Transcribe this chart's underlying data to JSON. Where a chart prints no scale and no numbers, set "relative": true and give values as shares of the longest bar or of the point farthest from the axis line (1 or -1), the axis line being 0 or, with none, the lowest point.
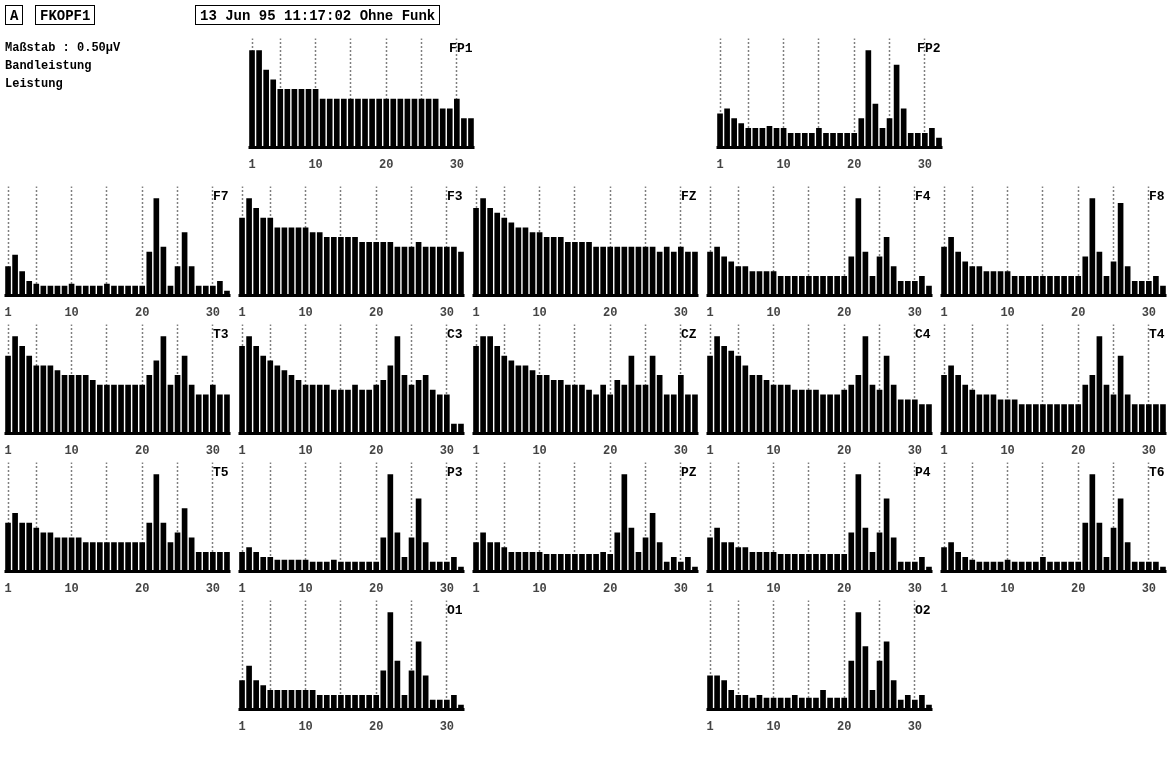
{
  "chart_data": [
    {
      "type": "other",
      "annotations": [
        "A",
        "FKOPF1",
        "13 Jun 95 11:17:02 Ohne Funk",
        "Maßstab : 0.50µV",
        "Bandleistung",
        "Leistung"
      ]
    },
    {
      "type": "bar",
      "title": "FP1",
      "relative": true,
      "grid": "x",
      "xlim": [
        0.5,
        32.5
      ],
      "xticks": [
        1,
        {
          "value": 5,
          "label": null
        },
        10,
        {
          "value": 15,
          "label": null
        },
        20,
        {
          "value": 25,
          "label": null
        },
        30
      ],
      "color": "#000000",
      "x": [
        1,
        2,
        3,
        4,
        5,
        6,
        7,
        8,
        9,
        10,
        11,
        12,
        13,
        14,
        15,
        16,
        17,
        18,
        19,
        20,
        21,
        22,
        23,
        24,
        25,
        26,
        27,
        28,
        29,
        30,
        31,
        32
      ],
      "values": [
        1,
        1,
        0.8,
        0.7,
        0.6,
        0.6,
        0.6,
        0.6,
        0.6,
        0.6,
        0.5,
        0.5,
        0.5,
        0.5,
        0.5,
        0.5,
        0.5,
        0.5,
        0.5,
        0.5,
        0.5,
        0.5,
        0.5,
        0.5,
        0.5,
        0.5,
        0.5,
        0.4,
        0.4,
        0.5,
        0.3,
        0.3
      ]
    },
    {
      "type": "bar",
      "title": "FP2",
      "relative": true,
      "grid": "x",
      "xlim": [
        0.5,
        32.5
      ],
      "xticks": [
        1,
        {
          "value": 5,
          "label": null
        },
        10,
        {
          "value": 15,
          "label": null
        },
        20,
        {
          "value": 25,
          "label": null
        },
        30
      ],
      "color": "#000000",
      "x": [
        1,
        2,
        3,
        4,
        5,
        6,
        7,
        8,
        9,
        10,
        11,
        12,
        13,
        14,
        15,
        16,
        17,
        18,
        19,
        20,
        21,
        22,
        23,
        24,
        25,
        26,
        27,
        28,
        29,
        30,
        31,
        32
      ],
      "values": [
        0.35,
        0.4,
        0.3,
        0.25,
        0.2,
        0.2,
        0.2,
        0.22,
        0.2,
        0.2,
        0.15,
        0.15,
        0.15,
        0.15,
        0.2,
        0.15,
        0.15,
        0.15,
        0.15,
        0.15,
        0.3,
        1,
        0.45,
        0.2,
        0.3,
        0.85,
        0.4,
        0.15,
        0.15,
        0.15,
        0.2,
        0.1
      ]
    },
    {
      "type": "bar",
      "title": "F7",
      "relative": true,
      "grid": "x",
      "xlim": [
        0.5,
        32.5
      ],
      "xticks": [
        1,
        {
          "value": 5,
          "label": null
        },
        10,
        {
          "value": 15,
          "label": null
        },
        20,
        {
          "value": 25,
          "label": null
        },
        30
      ],
      "color": "#000000",
      "x": [
        1,
        2,
        3,
        4,
        5,
        6,
        7,
        8,
        9,
        10,
        11,
        12,
        13,
        14,
        15,
        16,
        17,
        18,
        19,
        20,
        21,
        22,
        23,
        24,
        25,
        26,
        27,
        28,
        29,
        30,
        31,
        32
      ],
      "values": [
        0.3,
        0.42,
        0.25,
        0.15,
        0.12,
        0.1,
        0.1,
        0.1,
        0.1,
        0.12,
        0.1,
        0.1,
        0.1,
        0.1,
        0.12,
        0.1,
        0.1,
        0.1,
        0.1,
        0.1,
        0.45,
        1,
        0.5,
        0.1,
        0.3,
        0.65,
        0.3,
        0.1,
        0.1,
        0.1,
        0.15,
        0.05
      ]
    },
    {
      "type": "bar",
      "title": "F3",
      "relative": true,
      "grid": "x",
      "xlim": [
        0.5,
        32.5
      ],
      "xticks": [
        1,
        {
          "value": 5,
          "label": null
        },
        10,
        {
          "value": 15,
          "label": null
        },
        20,
        {
          "value": 25,
          "label": null
        },
        30
      ],
      "color": "#000000",
      "x": [
        1,
        2,
        3,
        4,
        5,
        6,
        7,
        8,
        9,
        10,
        11,
        12,
        13,
        14,
        15,
        16,
        17,
        18,
        19,
        20,
        21,
        22,
        23,
        24,
        25,
        26,
        27,
        28,
        29,
        30,
        31,
        32
      ],
      "values": [
        0.8,
        1,
        0.9,
        0.8,
        0.8,
        0.7,
        0.7,
        0.7,
        0.7,
        0.7,
        0.65,
        0.65,
        0.6,
        0.6,
        0.6,
        0.6,
        0.6,
        0.55,
        0.55,
        0.55,
        0.55,
        0.55,
        0.5,
        0.5,
        0.5,
        0.55,
        0.5,
        0.5,
        0.5,
        0.5,
        0.5,
        0.45
      ]
    },
    {
      "type": "bar",
      "title": "FZ",
      "relative": true,
      "grid": "x",
      "xlim": [
        0.5,
        32.5
      ],
      "xticks": [
        1,
        {
          "value": 5,
          "label": null
        },
        10,
        {
          "value": 15,
          "label": null
        },
        20,
        {
          "value": 25,
          "label": null
        },
        30
      ],
      "color": "#000000",
      "x": [
        1,
        2,
        3,
        4,
        5,
        6,
        7,
        8,
        9,
        10,
        11,
        12,
        13,
        14,
        15,
        16,
        17,
        18,
        19,
        20,
        21,
        22,
        23,
        24,
        25,
        26,
        27,
        28,
        29,
        30,
        31,
        32
      ],
      "values": [
        0.9,
        1,
        0.9,
        0.85,
        0.8,
        0.75,
        0.7,
        0.7,
        0.65,
        0.65,
        0.6,
        0.6,
        0.6,
        0.55,
        0.55,
        0.55,
        0.55,
        0.5,
        0.5,
        0.5,
        0.5,
        0.5,
        0.5,
        0.5,
        0.5,
        0.5,
        0.45,
        0.5,
        0.45,
        0.5,
        0.45,
        0.45
      ]
    },
    {
      "type": "bar",
      "title": "F4",
      "relative": true,
      "grid": "x",
      "xlim": [
        0.5,
        32.5
      ],
      "xticks": [
        1,
        {
          "value": 5,
          "label": null
        },
        10,
        {
          "value": 15,
          "label": null
        },
        20,
        {
          "value": 25,
          "label": null
        },
        30
      ],
      "color": "#000000",
      "x": [
        1,
        2,
        3,
        4,
        5,
        6,
        7,
        8,
        9,
        10,
        11,
        12,
        13,
        14,
        15,
        16,
        17,
        18,
        19,
        20,
        21,
        22,
        23,
        24,
        25,
        26,
        27,
        28,
        29,
        30,
        31,
        32
      ],
      "values": [
        0.45,
        0.5,
        0.4,
        0.35,
        0.3,
        0.3,
        0.25,
        0.25,
        0.25,
        0.25,
        0.2,
        0.2,
        0.2,
        0.2,
        0.2,
        0.2,
        0.2,
        0.2,
        0.2,
        0.2,
        0.4,
        1,
        0.45,
        0.2,
        0.4,
        0.6,
        0.3,
        0.15,
        0.15,
        0.15,
        0.2,
        0.1
      ]
    },
    {
      "type": "bar",
      "title": "F8",
      "relative": true,
      "grid": "x",
      "xlim": [
        0.5,
        32.5
      ],
      "xticks": [
        1,
        {
          "value": 5,
          "label": null
        },
        10,
        {
          "value": 15,
          "label": null
        },
        20,
        {
          "value": 25,
          "label": null
        },
        30
      ],
      "color": "#000000",
      "x": [
        1,
        2,
        3,
        4,
        5,
        6,
        7,
        8,
        9,
        10,
        11,
        12,
        13,
        14,
        15,
        16,
        17,
        18,
        19,
        20,
        21,
        22,
        23,
        24,
        25,
        26,
        27,
        28,
        29,
        30,
        31,
        32
      ],
      "values": [
        0.5,
        0.6,
        0.45,
        0.35,
        0.3,
        0.3,
        0.25,
        0.25,
        0.25,
        0.25,
        0.2,
        0.2,
        0.2,
        0.2,
        0.2,
        0.2,
        0.2,
        0.2,
        0.2,
        0.2,
        0.4,
        1,
        0.45,
        0.2,
        0.35,
        0.95,
        0.3,
        0.15,
        0.15,
        0.15,
        0.2,
        0.1
      ]
    },
    {
      "type": "bar",
      "title": "T3",
      "relative": true,
      "grid": "x",
      "xlim": [
        0.5,
        32.5
      ],
      "xticks": [
        1,
        {
          "value": 5,
          "label": null
        },
        10,
        {
          "value": 15,
          "label": null
        },
        20,
        {
          "value": 25,
          "label": null
        },
        30
      ],
      "color": "#000000",
      "x": [
        1,
        2,
        3,
        4,
        5,
        6,
        7,
        8,
        9,
        10,
        11,
        12,
        13,
        14,
        15,
        16,
        17,
        18,
        19,
        20,
        21,
        22,
        23,
        24,
        25,
        26,
        27,
        28,
        29,
        30,
        31,
        32
      ],
      "values": [
        0.8,
        1,
        0.9,
        0.8,
        0.7,
        0.7,
        0.7,
        0.65,
        0.6,
        0.6,
        0.6,
        0.6,
        0.55,
        0.5,
        0.5,
        0.5,
        0.5,
        0.5,
        0.5,
        0.5,
        0.6,
        0.75,
        1,
        0.5,
        0.6,
        0.8,
        0.5,
        0.4,
        0.4,
        0.5,
        0.4,
        0.4
      ]
    },
    {
      "type": "bar",
      "title": "C3",
      "relative": true,
      "grid": "x",
      "xlim": [
        0.5,
        32.5
      ],
      "xticks": [
        1,
        {
          "value": 5,
          "label": null
        },
        10,
        {
          "value": 15,
          "label": null
        },
        20,
        {
          "value": 25,
          "label": null
        },
        30
      ],
      "color": "#000000",
      "x": [
        1,
        2,
        3,
        4,
        5,
        6,
        7,
        8,
        9,
        10,
        11,
        12,
        13,
        14,
        15,
        16,
        17,
        18,
        19,
        20,
        21,
        22,
        23,
        24,
        25,
        26,
        27,
        28,
        29,
        30,
        31,
        32
      ],
      "values": [
        0.9,
        1,
        0.9,
        0.8,
        0.75,
        0.7,
        0.65,
        0.6,
        0.55,
        0.5,
        0.5,
        0.5,
        0.5,
        0.45,
        0.45,
        0.45,
        0.5,
        0.45,
        0.45,
        0.5,
        0.55,
        0.7,
        1,
        0.6,
        0.5,
        0.55,
        0.6,
        0.45,
        0.4,
        0.4,
        0.1,
        0.1
      ]
    },
    {
      "type": "bar",
      "title": "CZ",
      "relative": true,
      "grid": "x",
      "xlim": [
        0.5,
        32.5
      ],
      "xticks": [
        1,
        {
          "value": 5,
          "label": null
        },
        10,
        {
          "value": 15,
          "label": null
        },
        20,
        {
          "value": 25,
          "label": null
        },
        30
      ],
      "color": "#000000",
      "x": [
        1,
        2,
        3,
        4,
        5,
        6,
        7,
        8,
        9,
        10,
        11,
        12,
        13,
        14,
        15,
        16,
        17,
        18,
        19,
        20,
        21,
        22,
        23,
        24,
        25,
        26,
        27,
        28,
        29,
        30,
        31,
        32
      ],
      "values": [
        0.9,
        1,
        1,
        0.9,
        0.8,
        0.75,
        0.7,
        0.7,
        0.65,
        0.6,
        0.6,
        0.55,
        0.55,
        0.5,
        0.5,
        0.5,
        0.45,
        0.4,
        0.5,
        0.4,
        0.55,
        0.5,
        0.8,
        0.5,
        0.5,
        0.8,
        0.6,
        0.4,
        0.4,
        0.6,
        0.4,
        0.4
      ]
    },
    {
      "type": "bar",
      "title": "C4",
      "relative": true,
      "grid": "x",
      "xlim": [
        0.5,
        32.5
      ],
      "xticks": [
        1,
        {
          "value": 5,
          "label": null
        },
        10,
        {
          "value": 15,
          "label": null
        },
        20,
        {
          "value": 25,
          "label": null
        },
        30
      ],
      "color": "#000000",
      "x": [
        1,
        2,
        3,
        4,
        5,
        6,
        7,
        8,
        9,
        10,
        11,
        12,
        13,
        14,
        15,
        16,
        17,
        18,
        19,
        20,
        21,
        22,
        23,
        24,
        25,
        26,
        27,
        28,
        29,
        30,
        31,
        32
      ],
      "values": [
        0.8,
        1,
        0.9,
        0.85,
        0.8,
        0.7,
        0.6,
        0.6,
        0.55,
        0.5,
        0.5,
        0.5,
        0.45,
        0.45,
        0.45,
        0.45,
        0.4,
        0.4,
        0.4,
        0.45,
        0.5,
        0.6,
        1,
        0.5,
        0.45,
        0.8,
        0.5,
        0.35,
        0.35,
        0.35,
        0.3,
        0.3
      ]
    },
    {
      "type": "bar",
      "title": "T4",
      "relative": true,
      "grid": "x",
      "xlim": [
        0.5,
        32.5
      ],
      "xticks": [
        1,
        {
          "value": 5,
          "label": null
        },
        10,
        {
          "value": 15,
          "label": null
        },
        20,
        {
          "value": 25,
          "label": null
        },
        30
      ],
      "color": "#000000",
      "x": [
        1,
        2,
        3,
        4,
        5,
        6,
        7,
        8,
        9,
        10,
        11,
        12,
        13,
        14,
        15,
        16,
        17,
        18,
        19,
        20,
        21,
        22,
        23,
        24,
        25,
        26,
        27,
        28,
        29,
        30,
        31,
        32
      ],
      "values": [
        0.6,
        0.7,
        0.6,
        0.5,
        0.45,
        0.4,
        0.4,
        0.4,
        0.35,
        0.35,
        0.35,
        0.3,
        0.3,
        0.3,
        0.3,
        0.3,
        0.3,
        0.3,
        0.3,
        0.3,
        0.5,
        0.6,
        1,
        0.5,
        0.4,
        0.8,
        0.4,
        0.3,
        0.3,
        0.3,
        0.3,
        0.3
      ]
    },
    {
      "type": "bar",
      "title": "T5",
      "relative": true,
      "grid": "x",
      "xlim": [
        0.5,
        32.5
      ],
      "xticks": [
        1,
        {
          "value": 5,
          "label": null
        },
        10,
        {
          "value": 15,
          "label": null
        },
        20,
        {
          "value": 25,
          "label": null
        },
        30
      ],
      "color": "#000000",
      "x": [
        1,
        2,
        3,
        4,
        5,
        6,
        7,
        8,
        9,
        10,
        11,
        12,
        13,
        14,
        15,
        16,
        17,
        18,
        19,
        20,
        21,
        22,
        23,
        24,
        25,
        26,
        27,
        28,
        29,
        30,
        31,
        32
      ],
      "values": [
        0.5,
        0.6,
        0.5,
        0.5,
        0.45,
        0.4,
        0.4,
        0.35,
        0.35,
        0.35,
        0.35,
        0.3,
        0.3,
        0.3,
        0.3,
        0.3,
        0.3,
        0.3,
        0.3,
        0.3,
        0.5,
        1,
        0.5,
        0.3,
        0.4,
        0.65,
        0.35,
        0.2,
        0.2,
        0.2,
        0.2,
        0.2
      ]
    },
    {
      "type": "bar",
      "title": "P3",
      "relative": true,
      "grid": "x",
      "xlim": [
        0.5,
        32.5
      ],
      "xticks": [
        1,
        {
          "value": 5,
          "label": null
        },
        10,
        {
          "value": 15,
          "label": null
        },
        20,
        {
          "value": 25,
          "label": null
        },
        30
      ],
      "color": "#000000",
      "x": [
        1,
        2,
        3,
        4,
        5,
        6,
        7,
        8,
        9,
        10,
        11,
        12,
        13,
        14,
        15,
        16,
        17,
        18,
        19,
        20,
        21,
        22,
        23,
        24,
        25,
        26,
        27,
        28,
        29,
        30,
        31,
        32
      ],
      "values": [
        0.2,
        0.25,
        0.2,
        0.15,
        0.15,
        0.12,
        0.12,
        0.12,
        0.12,
        0.12,
        0.1,
        0.1,
        0.1,
        0.12,
        0.1,
        0.1,
        0.1,
        0.1,
        0.1,
        0.1,
        0.35,
        1,
        0.4,
        0.15,
        0.35,
        0.75,
        0.3,
        0.1,
        0.1,
        0.1,
        0.15,
        0.05
      ]
    },
    {
      "type": "bar",
      "title": "PZ",
      "relative": true,
      "grid": "x",
      "xlim": [
        0.5,
        32.5
      ],
      "xticks": [
        1,
        {
          "value": 5,
          "label": null
        },
        10,
        {
          "value": 15,
          "label": null
        },
        20,
        {
          "value": 25,
          "label": null
        },
        30
      ],
      "color": "#000000",
      "x": [
        1,
        2,
        3,
        4,
        5,
        6,
        7,
        8,
        9,
        10,
        11,
        12,
        13,
        14,
        15,
        16,
        17,
        18,
        19,
        20,
        21,
        22,
        23,
        24,
        25,
        26,
        27,
        28,
        29,
        30,
        31,
        32
      ],
      "values": [
        0.3,
        0.4,
        0.3,
        0.3,
        0.25,
        0.2,
        0.2,
        0.2,
        0.2,
        0.2,
        0.18,
        0.18,
        0.18,
        0.18,
        0.18,
        0.18,
        0.18,
        0.18,
        0.2,
        0.18,
        0.4,
        1,
        0.45,
        0.2,
        0.35,
        0.6,
        0.3,
        0.1,
        0.15,
        0.1,
        0.15,
        0.05
      ]
    },
    {
      "type": "bar",
      "title": "P4",
      "relative": true,
      "grid": "x",
      "xlim": [
        0.5,
        32.5
      ],
      "xticks": [
        1,
        {
          "value": 5,
          "label": null
        },
        10,
        {
          "value": 15,
          "label": null
        },
        20,
        {
          "value": 25,
          "label": null
        },
        30
      ],
      "color": "#000000",
      "x": [
        1,
        2,
        3,
        4,
        5,
        6,
        7,
        8,
        9,
        10,
        11,
        12,
        13,
        14,
        15,
        16,
        17,
        18,
        19,
        20,
        21,
        22,
        23,
        24,
        25,
        26,
        27,
        28,
        29,
        30,
        31,
        32
      ],
      "values": [
        0.35,
        0.45,
        0.3,
        0.3,
        0.25,
        0.25,
        0.2,
        0.2,
        0.2,
        0.2,
        0.18,
        0.18,
        0.18,
        0.18,
        0.18,
        0.18,
        0.18,
        0.18,
        0.18,
        0.18,
        0.4,
        1,
        0.45,
        0.2,
        0.4,
        0.75,
        0.35,
        0.1,
        0.1,
        0.1,
        0.15,
        0.05
      ]
    },
    {
      "type": "bar",
      "title": "T6",
      "relative": true,
      "grid": "x",
      "xlim": [
        0.5,
        32.5
      ],
      "xticks": [
        1,
        {
          "value": 5,
          "label": null
        },
        10,
        {
          "value": 15,
          "label": null
        },
        20,
        {
          "value": 25,
          "label": null
        },
        30
      ],
      "color": "#000000",
      "x": [
        1,
        2,
        3,
        4,
        5,
        6,
        7,
        8,
        9,
        10,
        11,
        12,
        13,
        14,
        15,
        16,
        17,
        18,
        19,
        20,
        21,
        22,
        23,
        24,
        25,
        26,
        27,
        28,
        29,
        30,
        31,
        32
      ],
      "values": [
        0.25,
        0.3,
        0.2,
        0.15,
        0.12,
        0.1,
        0.1,
        0.1,
        0.1,
        0.12,
        0.1,
        0.1,
        0.1,
        0.1,
        0.15,
        0.1,
        0.1,
        0.1,
        0.1,
        0.1,
        0.5,
        1,
        0.5,
        0.15,
        0.45,
        0.75,
        0.3,
        0.1,
        0.1,
        0.1,
        0.1,
        0.05
      ]
    },
    {
      "type": "bar",
      "title": "O1",
      "relative": true,
      "grid": "x",
      "xlim": [
        0.5,
        32.5
      ],
      "xticks": [
        1,
        {
          "value": 5,
          "label": null
        },
        10,
        {
          "value": 15,
          "label": null
        },
        20,
        {
          "value": 25,
          "label": null
        },
        30
      ],
      "color": "#000000",
      "x": [
        1,
        2,
        3,
        4,
        5,
        6,
        7,
        8,
        9,
        10,
        11,
        12,
        13,
        14,
        15,
        16,
        17,
        18,
        19,
        20,
        21,
        22,
        23,
        24,
        25,
        26,
        27,
        28,
        29,
        30,
        31,
        32
      ],
      "values": [
        0.3,
        0.45,
        0.3,
        0.25,
        0.2,
        0.2,
        0.2,
        0.2,
        0.2,
        0.2,
        0.2,
        0.15,
        0.15,
        0.15,
        0.15,
        0.15,
        0.15,
        0.15,
        0.15,
        0.15,
        0.4,
        1,
        0.5,
        0.15,
        0.4,
        0.7,
        0.35,
        0.1,
        0.1,
        0.1,
        0.15,
        0.05
      ]
    },
    {
      "type": "bar",
      "title": "O2",
      "relative": true,
      "grid": "x",
      "xlim": [
        0.5,
        32.5
      ],
      "xticks": [
        1,
        {
          "value": 5,
          "label": null
        },
        10,
        {
          "value": 15,
          "label": null
        },
        20,
        {
          "value": 25,
          "label": null
        },
        30
      ],
      "color": "#000000",
      "x": [
        1,
        2,
        3,
        4,
        5,
        6,
        7,
        8,
        9,
        10,
        11,
        12,
        13,
        14,
        15,
        16,
        17,
        18,
        19,
        20,
        21,
        22,
        23,
        24,
        25,
        26,
        27,
        28,
        29,
        30,
        31,
        32
      ],
      "values": [
        0.35,
        0.35,
        0.3,
        0.2,
        0.15,
        0.15,
        0.12,
        0.15,
        0.12,
        0.12,
        0.12,
        0.12,
        0.15,
        0.12,
        0.12,
        0.12,
        0.2,
        0.12,
        0.12,
        0.12,
        0.5,
        1,
        0.65,
        0.2,
        0.5,
        0.7,
        0.3,
        0.1,
        0.15,
        0.1,
        0.15,
        0.05
      ]
    }
  ]
}
